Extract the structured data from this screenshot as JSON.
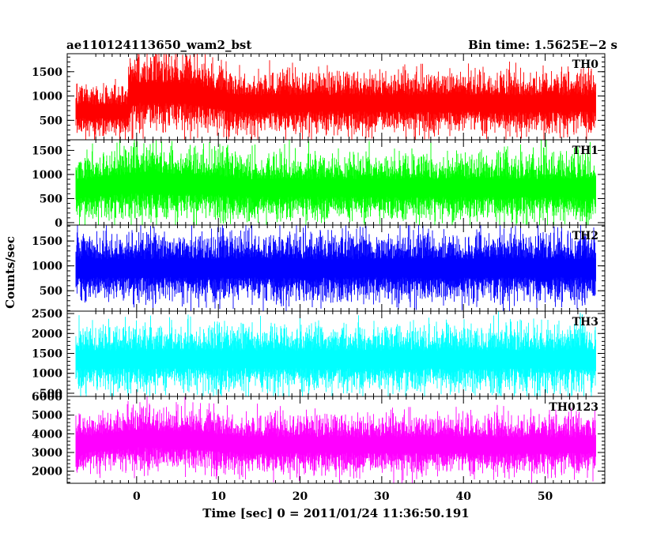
{
  "title_left": "ae110124113650_wam2_bst",
  "title_right": "Bin time: 1.5625E−2 s",
  "ylabel": "Counts/sec",
  "xlabel": "Time [sec] 0 = 2011/01/24 11:36:50.191",
  "chart_data": {
    "type": "line",
    "x_range": [
      -8.5,
      57.3
    ],
    "x_ticks": [
      0,
      10,
      20,
      30,
      40,
      50
    ],
    "bin_time_s": 0.015625,
    "panels": [
      {
        "name": "TH0",
        "color": "#ff0000",
        "ylim": [
          100,
          1870
        ],
        "y_ticks": [
          500,
          1000,
          1500
        ],
        "data_x_range": [
          -7.5,
          56.2
        ],
        "baseline": 850,
        "noise": 300,
        "envelope": [
          [
            -7.5,
            0.8
          ],
          [
            -1.2,
            0.8
          ],
          [
            -0.8,
            1.25
          ],
          [
            6,
            1.25
          ],
          [
            12,
            1.0
          ],
          [
            56.2,
            1.0
          ]
        ]
      },
      {
        "name": "TH1",
        "color": "#00ff00",
        "ylim": [
          -50,
          1720
        ],
        "y_ticks": [
          0,
          500,
          1000,
          1500
        ],
        "data_x_range": [
          -7.5,
          56.2
        ],
        "baseline": 720,
        "noise": 330,
        "envelope": [
          [
            -7.5,
            0.95
          ],
          [
            0,
            1.15
          ],
          [
            8,
            1.1
          ],
          [
            14,
            1.0
          ],
          [
            56.2,
            1.0
          ]
        ]
      },
      {
        "name": "TH2",
        "color": "#0000ff",
        "ylim": [
          90,
          1820
        ],
        "y_ticks": [
          500,
          1000,
          1500
        ],
        "data_x_range": [
          -7.5,
          56.2
        ],
        "baseline": 950,
        "noise": 330,
        "envelope": [
          [
            -7.5,
            1.0
          ],
          [
            56.2,
            1.0
          ]
        ]
      },
      {
        "name": "TH3",
        "color": "#00ffff",
        "ylim": [
          420,
          2560
        ],
        "y_ticks": [
          500,
          1000,
          1500,
          2000,
          2500
        ],
        "data_x_range": [
          -7.5,
          56.2
        ],
        "baseline": 1350,
        "noise": 400,
        "envelope": [
          [
            -7.5,
            1.0
          ],
          [
            56.2,
            1.0
          ]
        ]
      },
      {
        "name": "TH0123",
        "color": "#ff00ff",
        "ylim": [
          1350,
          6000
        ],
        "y_ticks": [
          2000,
          3000,
          4000,
          5000,
          6000
        ],
        "data_x_range": [
          -7.5,
          56.2
        ],
        "baseline": 3400,
        "noise": 750,
        "envelope": [
          [
            -7.5,
            1.0
          ],
          [
            0,
            1.1
          ],
          [
            6,
            1.08
          ],
          [
            14,
            1.0
          ],
          [
            56.2,
            1.0
          ]
        ]
      }
    ]
  }
}
